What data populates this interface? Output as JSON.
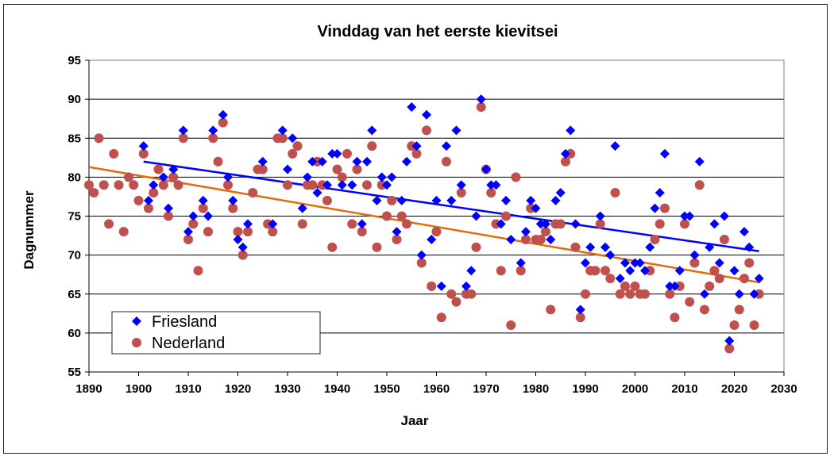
{
  "chart_data": {
    "type": "scatter",
    "title": "Vinddag van het eerste kievitsei",
    "xlabel": "Jaar",
    "ylabel": "Dagnummer",
    "xlim": [
      1890,
      2030
    ],
    "ylim": [
      55,
      95
    ],
    "xticks": [
      1890,
      1900,
      1910,
      1920,
      1930,
      1940,
      1950,
      1960,
      1970,
      1980,
      1990,
      2000,
      2010,
      2020,
      2030
    ],
    "yticks": [
      55,
      60,
      65,
      70,
      75,
      80,
      85,
      90,
      95
    ],
    "grid": "horizontal",
    "legend_position": "bottom-left",
    "series": [
      {
        "name": "Friesland",
        "color": "#0000ff",
        "marker": "diamond",
        "points": [
          [
            1901,
            84
          ],
          [
            1902,
            77
          ],
          [
            1903,
            79
          ],
          [
            1905,
            80
          ],
          [
            1906,
            76
          ],
          [
            1907,
            81
          ],
          [
            1909,
            86
          ],
          [
            1910,
            73
          ],
          [
            1911,
            75
          ],
          [
            1913,
            77
          ],
          [
            1914,
            75
          ],
          [
            1915,
            86
          ],
          [
            1917,
            88
          ],
          [
            1918,
            80
          ],
          [
            1919,
            77
          ],
          [
            1920,
            72
          ],
          [
            1921,
            71
          ],
          [
            1922,
            74
          ],
          [
            1925,
            82
          ],
          [
            1927,
            74
          ],
          [
            1929,
            86
          ],
          [
            1930,
            81
          ],
          [
            1931,
            85
          ],
          [
            1933,
            76
          ],
          [
            1934,
            80
          ],
          [
            1935,
            82
          ],
          [
            1936,
            78
          ],
          [
            1937,
            82
          ],
          [
            1938,
            79
          ],
          [
            1939,
            83
          ],
          [
            1940,
            83
          ],
          [
            1941,
            79
          ],
          [
            1943,
            79
          ],
          [
            1944,
            82
          ],
          [
            1945,
            74
          ],
          [
            1946,
            82
          ],
          [
            1947,
            86
          ],
          [
            1948,
            77
          ],
          [
            1949,
            80
          ],
          [
            1950,
            79
          ],
          [
            1951,
            80
          ],
          [
            1952,
            73
          ],
          [
            1953,
            77
          ],
          [
            1954,
            82
          ],
          [
            1955,
            89
          ],
          [
            1956,
            84
          ],
          [
            1957,
            70
          ],
          [
            1958,
            88
          ],
          [
            1959,
            72
          ],
          [
            1960,
            77
          ],
          [
            1961,
            66
          ],
          [
            1962,
            84
          ],
          [
            1963,
            77
          ],
          [
            1964,
            86
          ],
          [
            1965,
            79
          ],
          [
            1966,
            66
          ],
          [
            1967,
            68
          ],
          [
            1968,
            75
          ],
          [
            1969,
            90
          ],
          [
            1970,
            81
          ],
          [
            1971,
            79
          ],
          [
            1972,
            79
          ],
          [
            1973,
            74
          ],
          [
            1974,
            77
          ],
          [
            1975,
            72
          ],
          [
            1977,
            69
          ],
          [
            1978,
            73
          ],
          [
            1979,
            77
          ],
          [
            1980,
            76
          ],
          [
            1981,
            74
          ],
          [
            1982,
            74
          ],
          [
            1983,
            72
          ],
          [
            1984,
            77
          ],
          [
            1985,
            78
          ],
          [
            1986,
            83
          ],
          [
            1987,
            86
          ],
          [
            1988,
            74
          ],
          [
            1989,
            63
          ],
          [
            1990,
            69
          ],
          [
            1991,
            71
          ],
          [
            1993,
            75
          ],
          [
            1994,
            71
          ],
          [
            1995,
            70
          ],
          [
            1996,
            84
          ],
          [
            1997,
            67
          ],
          [
            1998,
            69
          ],
          [
            1999,
            68
          ],
          [
            2000,
            69
          ],
          [
            2001,
            69
          ],
          [
            2002,
            68
          ],
          [
            2003,
            71
          ],
          [
            2004,
            76
          ],
          [
            2005,
            78
          ],
          [
            2006,
            83
          ],
          [
            2007,
            66
          ],
          [
            2008,
            66
          ],
          [
            2009,
            68
          ],
          [
            2010,
            75
          ],
          [
            2011,
            75
          ],
          [
            2012,
            70
          ],
          [
            2013,
            82
          ],
          [
            2014,
            65
          ],
          [
            2015,
            71
          ],
          [
            2016,
            74
          ],
          [
            2017,
            69
          ],
          [
            2018,
            75
          ],
          [
            2019,
            59
          ],
          [
            2020,
            68
          ],
          [
            2021,
            65
          ],
          [
            2022,
            73
          ],
          [
            2023,
            71
          ],
          [
            2024,
            65
          ],
          [
            2025,
            67
          ]
        ],
        "trend": [
          [
            1901,
            82
          ],
          [
            2025,
            70.5
          ]
        ]
      },
      {
        "name": "Nederland",
        "color": "#c0504d",
        "marker": "circle",
        "points": [
          [
            1890,
            79
          ],
          [
            1891,
            78
          ],
          [
            1892,
            85
          ],
          [
            1893,
            79
          ],
          [
            1894,
            74
          ],
          [
            1895,
            83
          ],
          [
            1896,
            79
          ],
          [
            1897,
            73
          ],
          [
            1898,
            80
          ],
          [
            1899,
            79
          ],
          [
            1900,
            77
          ],
          [
            1901,
            83
          ],
          [
            1902,
            76
          ],
          [
            1903,
            78
          ],
          [
            1904,
            81
          ],
          [
            1905,
            79
          ],
          [
            1906,
            75
          ],
          [
            1907,
            80
          ],
          [
            1908,
            79
          ],
          [
            1909,
            85
          ],
          [
            1910,
            72
          ],
          [
            1911,
            74
          ],
          [
            1912,
            68
          ],
          [
            1913,
            76
          ],
          [
            1914,
            73
          ],
          [
            1915,
            85
          ],
          [
            1916,
            82
          ],
          [
            1917,
            87
          ],
          [
            1918,
            79
          ],
          [
            1919,
            76
          ],
          [
            1920,
            73
          ],
          [
            1921,
            70
          ],
          [
            1922,
            73
          ],
          [
            1923,
            78
          ],
          [
            1924,
            81
          ],
          [
            1925,
            81
          ],
          [
            1926,
            74
          ],
          [
            1927,
            73
          ],
          [
            1928,
            85
          ],
          [
            1929,
            85
          ],
          [
            1930,
            79
          ],
          [
            1931,
            83
          ],
          [
            1932,
            84
          ],
          [
            1933,
            74
          ],
          [
            1934,
            79
          ],
          [
            1935,
            79
          ],
          [
            1936,
            82
          ],
          [
            1937,
            79
          ],
          [
            1938,
            77
          ],
          [
            1939,
            71
          ],
          [
            1940,
            81
          ],
          [
            1941,
            80
          ],
          [
            1942,
            83
          ],
          [
            1943,
            74
          ],
          [
            1944,
            81
          ],
          [
            1945,
            73
          ],
          [
            1946,
            79
          ],
          [
            1947,
            84
          ],
          [
            1948,
            71
          ],
          [
            1949,
            79
          ],
          [
            1950,
            75
          ],
          [
            1951,
            77
          ],
          [
            1952,
            72
          ],
          [
            1953,
            75
          ],
          [
            1954,
            74
          ],
          [
            1955,
            84
          ],
          [
            1956,
            83
          ],
          [
            1957,
            69
          ],
          [
            1958,
            86
          ],
          [
            1959,
            66
          ],
          [
            1960,
            73
          ],
          [
            1961,
            62
          ],
          [
            1962,
            82
          ],
          [
            1963,
            65
          ],
          [
            1964,
            64
          ],
          [
            1965,
            78
          ],
          [
            1966,
            65
          ],
          [
            1967,
            65
          ],
          [
            1968,
            71
          ],
          [
            1969,
            89
          ],
          [
            1970,
            81
          ],
          [
            1971,
            78
          ],
          [
            1972,
            74
          ],
          [
            1973,
            68
          ],
          [
            1974,
            75
          ],
          [
            1975,
            61
          ],
          [
            1976,
            80
          ],
          [
            1977,
            68
          ],
          [
            1978,
            72
          ],
          [
            1979,
            76
          ],
          [
            1980,
            72
          ],
          [
            1981,
            72
          ],
          [
            1982,
            73
          ],
          [
            1983,
            63
          ],
          [
            1984,
            74
          ],
          [
            1985,
            74
          ],
          [
            1986,
            82
          ],
          [
            1987,
            83
          ],
          [
            1988,
            71
          ],
          [
            1989,
            62
          ],
          [
            1990,
            65
          ],
          [
            1991,
            68
          ],
          [
            1992,
            68
          ],
          [
            1993,
            74
          ],
          [
            1994,
            68
          ],
          [
            1995,
            67
          ],
          [
            1996,
            78
          ],
          [
            1997,
            65
          ],
          [
            1998,
            66
          ],
          [
            1999,
            65
          ],
          [
            2000,
            66
          ],
          [
            2001,
            65
          ],
          [
            2002,
            65
          ],
          [
            2003,
            68
          ],
          [
            2004,
            72
          ],
          [
            2005,
            74
          ],
          [
            2006,
            76
          ],
          [
            2007,
            65
          ],
          [
            2008,
            62
          ],
          [
            2009,
            66
          ],
          [
            2010,
            74
          ],
          [
            2011,
            64
          ],
          [
            2012,
            69
          ],
          [
            2013,
            79
          ],
          [
            2014,
            63
          ],
          [
            2015,
            66
          ],
          [
            2016,
            68
          ],
          [
            2017,
            67
          ],
          [
            2018,
            72
          ],
          [
            2019,
            58
          ],
          [
            2020,
            61
          ],
          [
            2021,
            63
          ],
          [
            2022,
            67
          ],
          [
            2023,
            69
          ],
          [
            2024,
            61
          ],
          [
            2025,
            65
          ]
        ],
        "trend": [
          [
            1890,
            81.3
          ],
          [
            2025,
            66.5
          ]
        ]
      }
    ]
  }
}
